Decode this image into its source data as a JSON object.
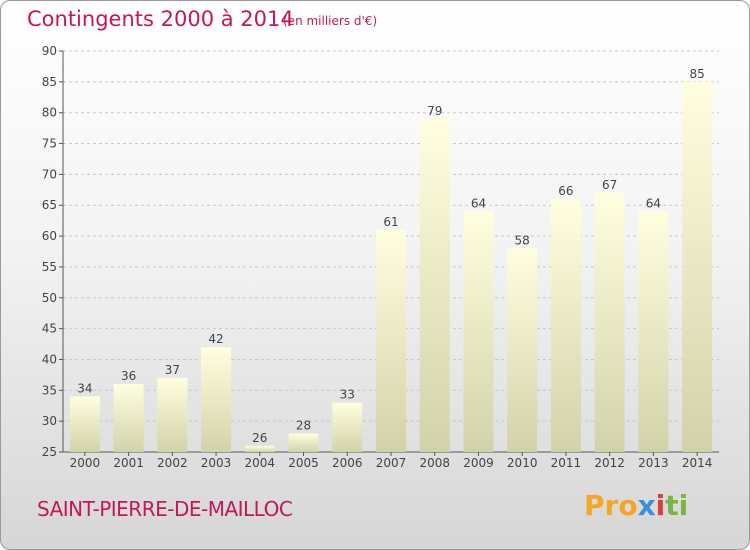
{
  "header": {
    "title": "Contingents 2000 à 2014",
    "subtitle": "(en milliers d'€)"
  },
  "footer": {
    "commune": "SAINT-PIERRE-DE-MAILLOC",
    "brand_parts": [
      "Pro",
      "x",
      "i",
      "ti"
    ]
  },
  "colors": {
    "accent": "#c2185b",
    "bar_top": "#ffffe0",
    "bar_bottom": "#d2d2aa",
    "grid": "#c8c8c8"
  },
  "chart_data": {
    "type": "bar",
    "title": "Contingents 2000 à 2014",
    "subtitle": "(en milliers d'€)",
    "categories": [
      "2000",
      "2001",
      "2002",
      "2003",
      "2004",
      "2005",
      "2006",
      "2007",
      "2008",
      "2009",
      "2010",
      "2011",
      "2012",
      "2013",
      "2014"
    ],
    "values": [
      34,
      36,
      37,
      42,
      26,
      28,
      33,
      61,
      79,
      64,
      58,
      66,
      67,
      64,
      85
    ],
    "ylim": [
      25,
      90
    ],
    "yticks": [
      25,
      30,
      35,
      40,
      45,
      50,
      55,
      60,
      65,
      70,
      75,
      80,
      85,
      90
    ],
    "grid": true,
    "data_labels": true
  }
}
